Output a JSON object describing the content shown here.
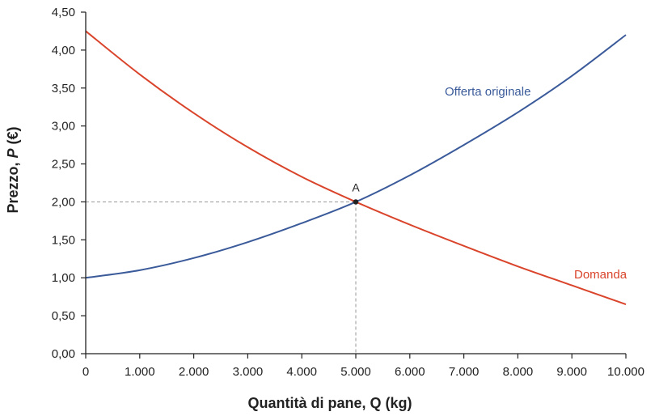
{
  "chart_data": {
    "type": "line",
    "xlabel": "Quantità di pane, Q (kg)",
    "ylabel_prefix": "Prezzo, ",
    "ylabel_var": "P",
    "ylabel_suffix": " (€)",
    "xlim": [
      0,
      10000
    ],
    "ylim": [
      0,
      4.5
    ],
    "x_ticks": [
      0,
      1000,
      2000,
      3000,
      4000,
      5000,
      6000,
      7000,
      8000,
      9000,
      10000
    ],
    "x_tick_labels": [
      "0",
      "1.000",
      "2.000",
      "3.000",
      "4.000",
      "5.000",
      "6.000",
      "7.000",
      "8.000",
      "9.000",
      "10.000"
    ],
    "y_ticks": [
      0,
      0.5,
      1,
      1.5,
      2,
      2.5,
      3,
      3.5,
      4,
      4.5
    ],
    "y_tick_labels": [
      "0,00",
      "0,50",
      "1,00",
      "1,50",
      "2,00",
      "2,50",
      "3,00",
      "3,50",
      "4,00",
      "4,50"
    ],
    "grid": false,
    "series": [
      {
        "name": "Offerta originale",
        "color": "#3a5a9a",
        "x": [
          0,
          1000,
          2000,
          3000,
          4000,
          5000,
          6000,
          7000,
          8000,
          9000,
          10000
        ],
        "y": [
          1.0,
          1.1,
          1.26,
          1.47,
          1.72,
          2.0,
          2.35,
          2.75,
          3.18,
          3.66,
          4.2
        ]
      },
      {
        "name": "Domanda",
        "color": "#d9442b",
        "x": [
          0,
          1000,
          2000,
          3000,
          4000,
          5000,
          6000,
          7000,
          8000,
          9000,
          10000
        ],
        "y": [
          4.25,
          3.68,
          3.17,
          2.72,
          2.33,
          2.0,
          1.7,
          1.42,
          1.15,
          0.9,
          0.65
        ]
      }
    ],
    "points": [
      {
        "label": "A",
        "x": 5000,
        "y": 2.0
      }
    ],
    "guide_color": "#999999",
    "axis_color": "#222222"
  }
}
